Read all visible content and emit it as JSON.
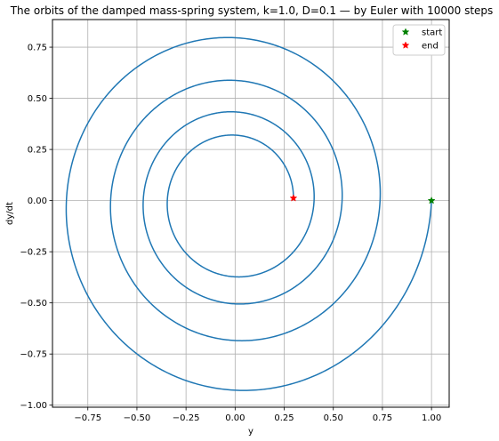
{
  "chart_data": {
    "type": "line",
    "title": "The orbits of the damped mass-spring system, k=1.0, D=0.1 — by Euler with 10000 steps",
    "xlabel": "y",
    "ylabel": "dy/dt",
    "xlim": [
      -0.93,
      1.09
    ],
    "ylim": [
      -1.01,
      0.885
    ],
    "xticks": [
      -0.75,
      -0.5,
      -0.25,
      0.0,
      0.25,
      0.5,
      0.75,
      1.0
    ],
    "xtick_labels": [
      "−0.75",
      "−0.50",
      "−0.25",
      "0.00",
      "0.25",
      "0.50",
      "0.75",
      "1.00"
    ],
    "yticks": [
      -1.0,
      -0.75,
      -0.5,
      -0.25,
      0.0,
      0.25,
      0.5,
      0.75
    ],
    "ytick_labels": [
      "−1.00",
      "−0.75",
      "−0.50",
      "−0.25",
      "0.00",
      "0.25",
      "0.50",
      "0.75"
    ],
    "grid": true,
    "legend_position": "top-right",
    "series": [
      {
        "name": "",
        "color": "#1f77b4",
        "kind": "orbit",
        "start": [
          1.0,
          0.0
        ],
        "end": [
          0.297,
          0.012
        ]
      }
    ],
    "markers": [
      {
        "name": "start",
        "x": 1.0,
        "y": 0.0,
        "color": "#008000",
        "symbol": "star"
      },
      {
        "name": "end",
        "x": 0.297,
        "y": 0.012,
        "color": "#ff0000",
        "symbol": "star"
      }
    ]
  }
}
